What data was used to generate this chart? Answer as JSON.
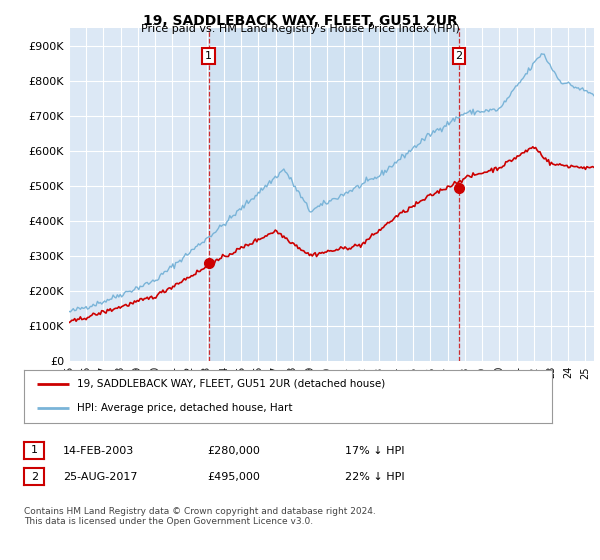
{
  "title": "19, SADDLEBACK WAY, FLEET, GU51 2UR",
  "subtitle": "Price paid vs. HM Land Registry's House Price Index (HPI)",
  "ylim": [
    0,
    950000
  ],
  "xlim_start": 1995.0,
  "xlim_end": 2025.5,
  "hpi_color": "#7ab4d8",
  "price_color": "#cc0000",
  "marker1_x": 2003.12,
  "marker1_y": 280000,
  "marker1_label": "1",
  "marker2_x": 2017.65,
  "marker2_y": 495000,
  "marker2_label": "2",
  "legend_line1": "19, SADDLEBACK WAY, FLEET, GU51 2UR (detached house)",
  "legend_line2": "HPI: Average price, detached house, Hart",
  "table_row1": [
    "1",
    "14-FEB-2003",
    "£280,000",
    "17% ↓ HPI"
  ],
  "table_row2": [
    "2",
    "25-AUG-2017",
    "£495,000",
    "22% ↓ HPI"
  ],
  "footnote": "Contains HM Land Registry data © Crown copyright and database right 2024.\nThis data is licensed under the Open Government Licence v3.0.",
  "plot_bg_color": "#dce8f5",
  "fill_between_color": "#c8ddf0",
  "grid_color": "#bbccdd"
}
